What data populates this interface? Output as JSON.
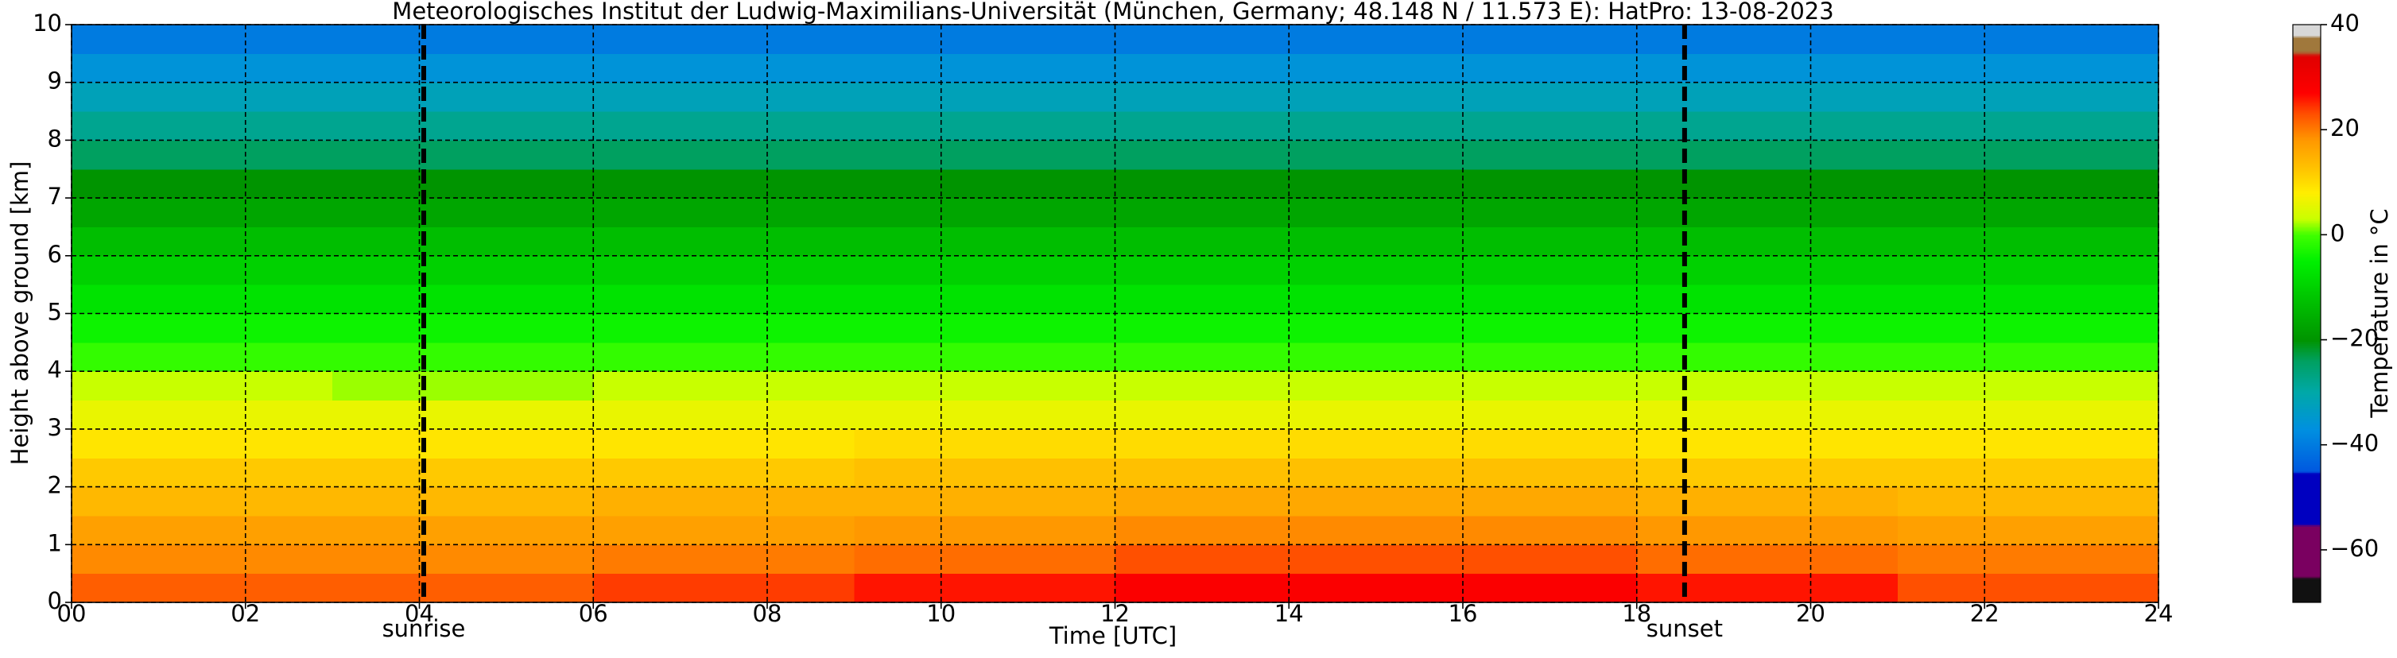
{
  "chart_data": {
    "type": "heatmap",
    "title": "Meteorologisches Institut der Ludwig-Maximilians-Universität (München, Germany; 48.148 N / 11.573 E):    HatPro: 13-08-2023",
    "xlabel": "Time [UTC]",
    "ylabel": "Height above ground [km]",
    "colorbar_label": "Temperature in $^\\circ$C",
    "colorbar_label_printed": "Temperature in °C",
    "x": [
      0,
      3,
      6,
      9,
      12,
      15,
      18,
      21,
      24
    ],
    "y": [
      0,
      0.5,
      1,
      1.5,
      2,
      2.5,
      3,
      3.5,
      4,
      4.5,
      5,
      5.5,
      6,
      6.5,
      7,
      7.5,
      8,
      8.5,
      9,
      9.5,
      10
    ],
    "z": [
      [
        22,
        22,
        24,
        26,
        28,
        28,
        26,
        23
      ],
      [
        19,
        19,
        20,
        21,
        23,
        23,
        21,
        20
      ],
      [
        17,
        17,
        17,
        18,
        19,
        19,
        18,
        17
      ],
      [
        14,
        14,
        15,
        15,
        16,
        16,
        15,
        14
      ],
      [
        12,
        12,
        12,
        13,
        13,
        13,
        12,
        12
      ],
      [
        9,
        9,
        9,
        10,
        10,
        10,
        9,
        9
      ],
      [
        6,
        6,
        6,
        6,
        6,
        6,
        6,
        6
      ],
      [
        3,
        2,
        3,
        3,
        3,
        3,
        3,
        3
      ],
      [
        -1,
        -1,
        -1,
        -1,
        -1,
        -1,
        -1,
        -1
      ],
      [
        -4,
        -4,
        -4,
        -4,
        -4,
        -4,
        -4,
        -4
      ],
      [
        -7,
        -7,
        -7,
        -7,
        -7,
        -7,
        -7,
        -7
      ],
      [
        -10,
        -10,
        -10,
        -10,
        -10,
        -10,
        -10,
        -10
      ],
      [
        -13,
        -13,
        -13,
        -13,
        -13,
        -13,
        -13,
        -13
      ],
      [
        -17,
        -17,
        -17,
        -17,
        -17,
        -17,
        -17,
        -17
      ],
      [
        -20,
        -20,
        -20,
        -20,
        -20,
        -20,
        -20,
        -20
      ],
      [
        -24,
        -24,
        -24,
        -24,
        -24,
        -24,
        -24,
        -24
      ],
      [
        -28,
        -28,
        -28,
        -28,
        -28,
        -28,
        -28,
        -28
      ],
      [
        -32,
        -32,
        -32,
        -32,
        -32,
        -32,
        -32,
        -32
      ],
      [
        -36,
        -36,
        -36,
        -36,
        -36,
        -36,
        -36,
        -36
      ],
      [
        -40,
        -40,
        -40,
        -40,
        -40,
        -40,
        -40,
        -40
      ]
    ],
    "xlim": [
      0,
      24
    ],
    "ylim": [
      0,
      10
    ],
    "xticks": [
      {
        "value": 0,
        "label": "00"
      },
      {
        "value": 2,
        "label": "02"
      },
      {
        "value": 4,
        "label": "04"
      },
      {
        "value": 6,
        "label": "06"
      },
      {
        "value": 8,
        "label": "08"
      },
      {
        "value": 10,
        "label": "10"
      },
      {
        "value": 12,
        "label": "12"
      },
      {
        "value": 14,
        "label": "14"
      },
      {
        "value": 16,
        "label": "16"
      },
      {
        "value": 18,
        "label": "18"
      },
      {
        "value": 20,
        "label": "20"
      },
      {
        "value": 22,
        "label": "22"
      },
      {
        "value": 24,
        "label": "24"
      }
    ],
    "yticks": [
      0,
      1,
      2,
      3,
      4,
      5,
      6,
      7,
      8,
      9,
      10
    ],
    "grid": true,
    "clim": [
      -70,
      40
    ],
    "cticks": [
      40,
      20,
      0,
      {
        "value": -20,
        "label": "−20"
      },
      {
        "value": -40,
        "label": "−40"
      },
      {
        "value": -60,
        "label": "−60"
      }
    ],
    "colorscale": [
      [
        -70,
        "#111111"
      ],
      [
        -65.5,
        "#111111"
      ],
      [
        -65,
        "#7a0060"
      ],
      [
        -55.5,
        "#7a0060"
      ],
      [
        -55,
        "#0000c0"
      ],
      [
        -45.5,
        "#0000c0"
      ],
      [
        -45,
        "#0058e0"
      ],
      [
        -37,
        "#0090e0"
      ],
      [
        -30,
        "#00a8a8"
      ],
      [
        -24,
        "#00a060"
      ],
      [
        -20,
        "#009400"
      ],
      [
        -12,
        "#00c400"
      ],
      [
        -5,
        "#00f000"
      ],
      [
        0,
        "#40ff00"
      ],
      [
        3,
        "#c8ff00"
      ],
      [
        8,
        "#ffee00"
      ],
      [
        13,
        "#ffc000"
      ],
      [
        18,
        "#ff9800"
      ],
      [
        23,
        "#ff5000"
      ],
      [
        27,
        "#ff0000"
      ],
      [
        34,
        "#e00000"
      ],
      [
        35,
        "#a0783c"
      ],
      [
        37.5,
        "#a0783c"
      ],
      [
        38,
        "#d8d8d8"
      ],
      [
        40,
        "#d8d8d8"
      ]
    ],
    "events": [
      {
        "x": 4.05,
        "label": "sunrise"
      },
      {
        "x": 18.55,
        "label": "sunset"
      }
    ]
  }
}
